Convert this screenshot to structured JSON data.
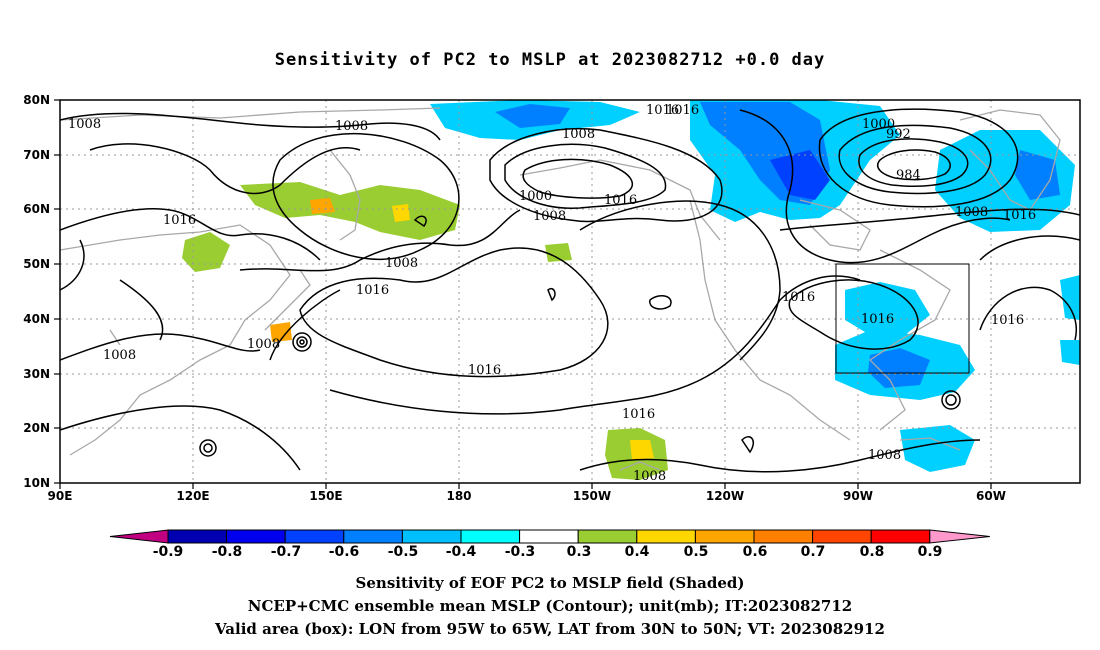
{
  "title": "Sensitivity of PC2 to MSLP at 2023082712 +0.0 day",
  "map": {
    "lat_labels": [
      "80N",
      "70N",
      "60N",
      "50N",
      "40N",
      "30N",
      "20N",
      "10N"
    ],
    "lon_labels": [
      "90E",
      "120E",
      "150E",
      "180",
      "150W",
      "120W",
      "90W",
      "60W"
    ]
  },
  "contour_labels": [
    "1008",
    "1008",
    "1016",
    "1008",
    "1008",
    "1016",
    "1008",
    "1016",
    "1008",
    "1000",
    "1016",
    "1016",
    "1016",
    "1016",
    "1016",
    "1008",
    "1000",
    "992",
    "984",
    "1008",
    "1016",
    "1016",
    "1016",
    "1008",
    "1008"
  ],
  "colorbar": {
    "labels": [
      "-0.9",
      "-0.8",
      "-0.7",
      "-0.6",
      "-0.5",
      "-0.4",
      "-0.3",
      "0.3",
      "0.4",
      "0.5",
      "0.6",
      "0.7",
      "0.8",
      "0.9"
    ],
    "colors": [
      "#c00080",
      "#0000b0",
      "#0000ee",
      "#0040ff",
      "#0080ff",
      "#00bfff",
      "#00ffff",
      "#ffffff",
      "#9acd32",
      "#ffd700",
      "#ffa500",
      "#ff7f00",
      "#ff4500",
      "#ff0000",
      "#ff99cc"
    ]
  },
  "footer": {
    "line1": "Sensitivity of EOF PC2 to MSLP field (Shaded)",
    "line2": "NCEP+CMC ensemble mean MSLP (Contour); unit(mb); IT:2023082712",
    "line3": "Valid area (box): LON from 95W to 65W, LAT from 30N to 50N; VT: 2023082912"
  }
}
